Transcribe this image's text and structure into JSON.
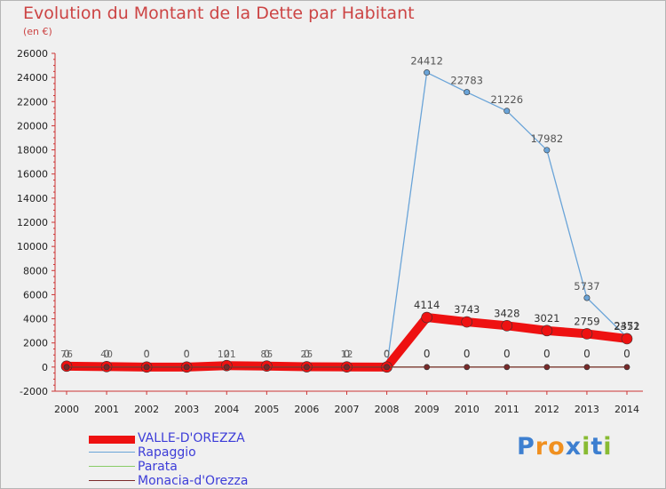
{
  "chart_data": {
    "type": "line",
    "title": "Evolution du Montant de la Dette par Habitant",
    "subtitle": "(en €)",
    "x": [
      "2000",
      "2001",
      "2002",
      "2003",
      "2004",
      "2005",
      "2006",
      "2007",
      "2008",
      "2009",
      "2010",
      "2011",
      "2012",
      "2013",
      "2014"
    ],
    "ylim": [
      -2000,
      26000
    ],
    "yticks": [
      -2000,
      0,
      2000,
      4000,
      6000,
      8000,
      10000,
      12000,
      14000,
      16000,
      18000,
      20000,
      22000,
      24000,
      26000
    ],
    "grid": false,
    "legend_position": "bottom-left",
    "series": [
      {
        "name": "VALLE-D'OREZZA",
        "color": "#ee1111",
        "values": [
          76,
          40,
          0,
          0,
          121,
          85,
          25,
          12,
          0,
          4114,
          3743,
          3428,
          3021,
          2759,
          2352
        ],
        "labels": [
          "76",
          "40",
          "0",
          "0",
          "121",
          "85",
          "25",
          "12",
          "0",
          "4114",
          "3743",
          "3428",
          "3021",
          "2759",
          "2352"
        ]
      },
      {
        "name": "Rapaggio",
        "color": "#6aa4d8",
        "values": [
          0,
          0,
          0,
          0,
          0,
          0,
          0,
          0,
          0,
          24412,
          22783,
          21226,
          17982,
          5737,
          2471
        ],
        "labels": [
          "0",
          "0",
          "0",
          "0",
          "0",
          "0",
          "0",
          "0",
          "0",
          "24412",
          "22783",
          "21226",
          "17982",
          "5737",
          "2471"
        ]
      },
      {
        "name": "Parata",
        "color": "#88cc66",
        "values": [
          0,
          0,
          0,
          0,
          0,
          0,
          0,
          0,
          0,
          0,
          0,
          0,
          0,
          0,
          0
        ],
        "labels": [
          "0",
          "0",
          "0",
          "0",
          "0",
          "0",
          "0",
          "0",
          "0",
          "0",
          "0",
          "0",
          "0",
          "0",
          "0"
        ]
      },
      {
        "name": "Monacia-d'Orezza",
        "color": "#7a2a2a",
        "values": [
          0,
          0,
          0,
          0,
          0,
          0,
          0,
          0,
          0,
          0,
          0,
          0,
          0,
          0,
          0
        ],
        "labels": [
          "0",
          "0",
          "0",
          "0",
          "0",
          "0",
          "0",
          "0",
          "0",
          "0",
          "0",
          "0",
          "0",
          "0",
          "0"
        ]
      }
    ]
  },
  "logo": {
    "text": "Proxiti",
    "letters": [
      "P",
      "r",
      "o",
      "x",
      "i",
      "t",
      "i"
    ],
    "colors": [
      "#3d7fd0",
      "#f09020",
      "#f09020",
      "#3d7fd0",
      "#88bb33",
      "#3d7fd0",
      "#88bb33"
    ]
  }
}
